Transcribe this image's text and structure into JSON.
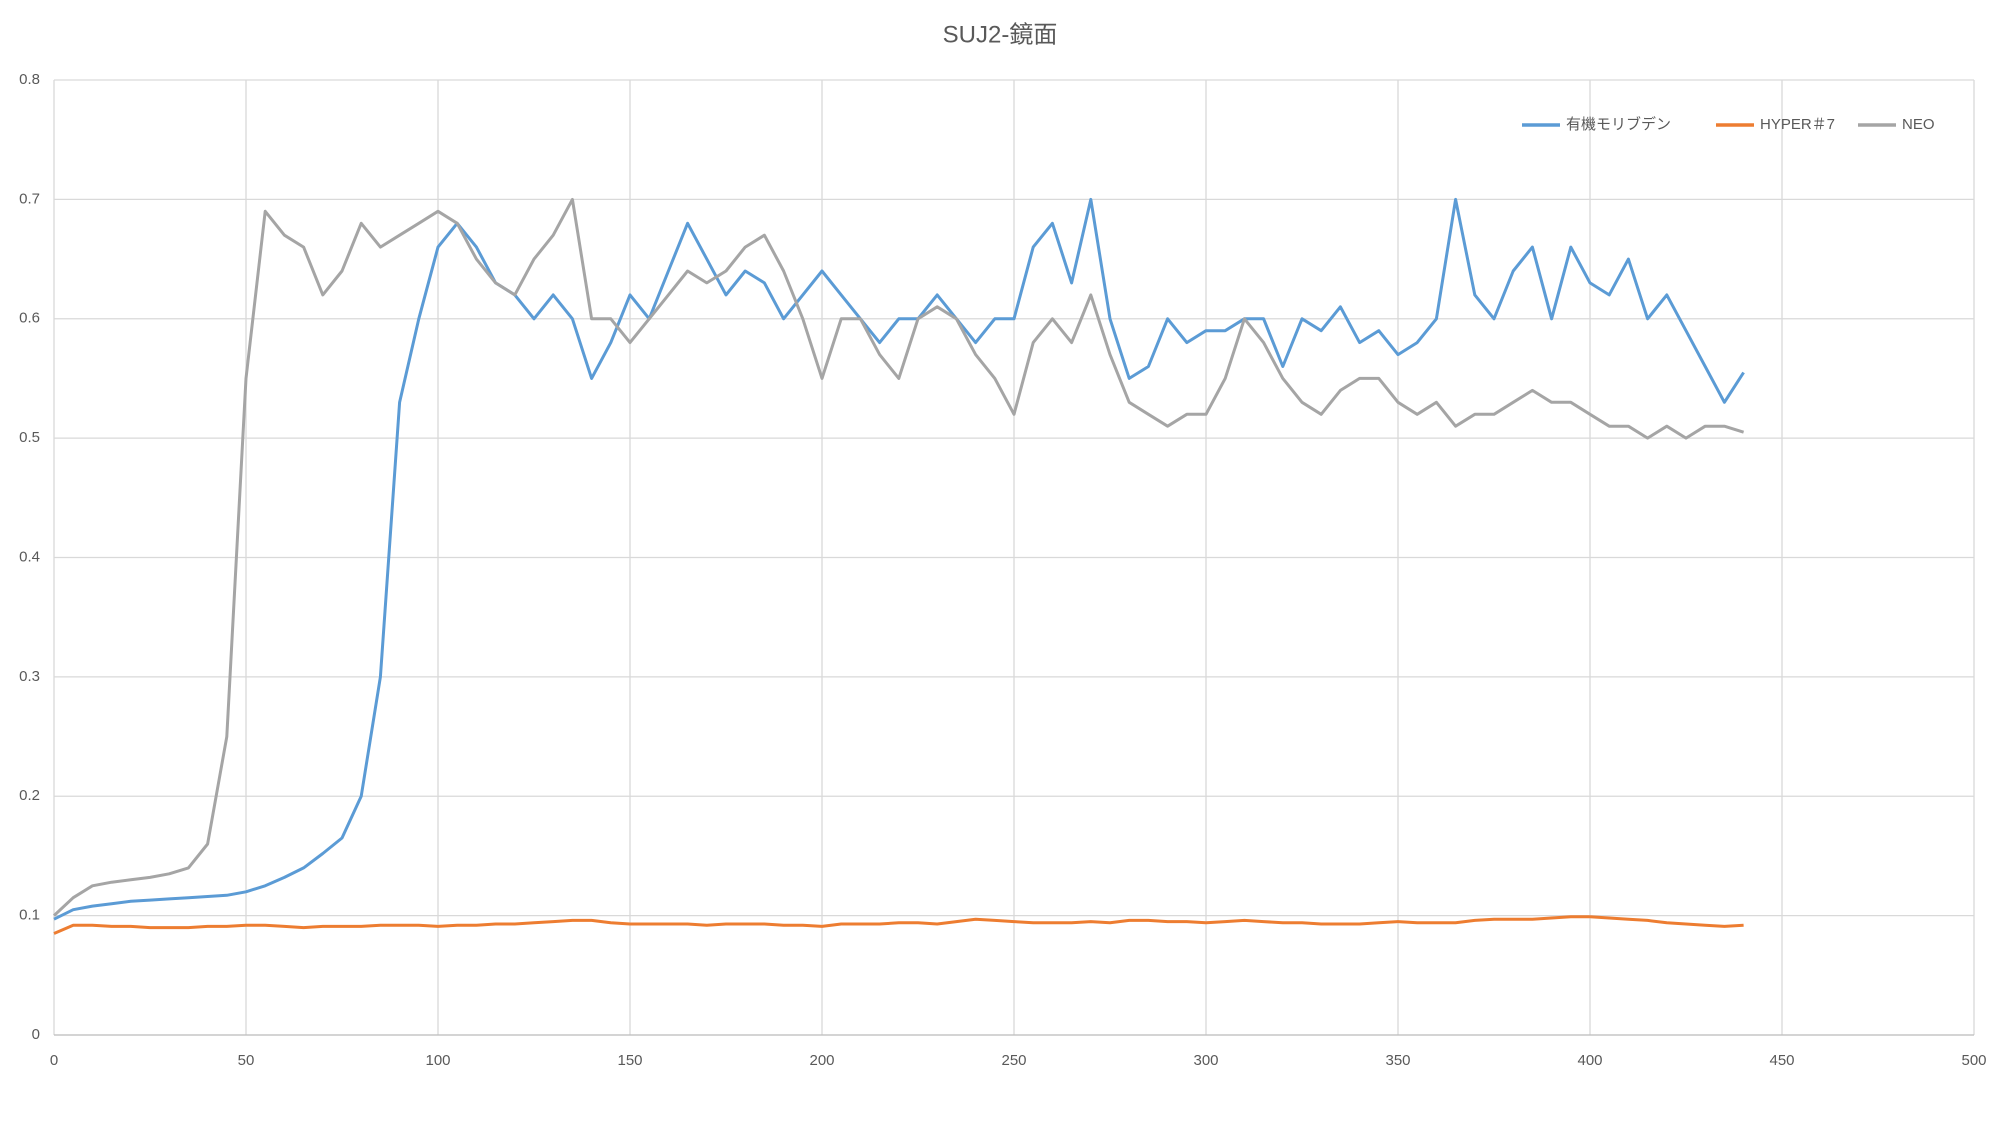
{
  "chart_data": {
    "type": "line",
    "title": "SUJ2-鏡面",
    "x": [
      0,
      5,
      10,
      15,
      20,
      25,
      30,
      35,
      40,
      45,
      50,
      55,
      60,
      65,
      70,
      75,
      80,
      85,
      90,
      95,
      100,
      105,
      110,
      115,
      120,
      125,
      130,
      135,
      140,
      145,
      150,
      155,
      160,
      165,
      170,
      175,
      180,
      185,
      190,
      195,
      200,
      205,
      210,
      215,
      220,
      225,
      230,
      235,
      240,
      245,
      250,
      255,
      260,
      265,
      270,
      275,
      280,
      285,
      290,
      295,
      300,
      305,
      310,
      315,
      320,
      325,
      330,
      335,
      340,
      345,
      350,
      355,
      360,
      365,
      370,
      375,
      380,
      385,
      390,
      395,
      400,
      405,
      410,
      415,
      420,
      425,
      430,
      435,
      440
    ],
    "series": [
      {
        "name": "有機モリブデン",
        "color": "#5b9bd5",
        "values": [
          0.097,
          0.105,
          0.108,
          0.11,
          0.112,
          0.113,
          0.114,
          0.115,
          0.116,
          0.117,
          0.12,
          0.125,
          0.132,
          0.14,
          0.152,
          0.165,
          0.2,
          0.3,
          0.53,
          0.6,
          0.66,
          0.68,
          0.66,
          0.63,
          0.62,
          0.6,
          0.62,
          0.6,
          0.55,
          0.58,
          0.62,
          0.6,
          0.64,
          0.68,
          0.65,
          0.62,
          0.64,
          0.63,
          0.6,
          0.62,
          0.64,
          0.62,
          0.6,
          0.58,
          0.6,
          0.6,
          0.62,
          0.6,
          0.58,
          0.6,
          0.6,
          0.66,
          0.68,
          0.63,
          0.7,
          0.6,
          0.55,
          0.56,
          0.6,
          0.58,
          0.59,
          0.59,
          0.6,
          0.6,
          0.56,
          0.6,
          0.59,
          0.61,
          0.58,
          0.59,
          0.57,
          0.58,
          0.6,
          0.7,
          0.62,
          0.6,
          0.64,
          0.66,
          0.6,
          0.66,
          0.63,
          0.62,
          0.65,
          0.6,
          0.62,
          0.59,
          0.56,
          0.53,
          0.555
        ]
      },
      {
        "name": "HYPER＃7",
        "color": "#ed7d31",
        "values": [
          0.085,
          0.092,
          0.092,
          0.091,
          0.091,
          0.09,
          0.09,
          0.09,
          0.091,
          0.091,
          0.092,
          0.092,
          0.091,
          0.09,
          0.091,
          0.091,
          0.091,
          0.092,
          0.092,
          0.092,
          0.091,
          0.092,
          0.092,
          0.093,
          0.093,
          0.094,
          0.095,
          0.096,
          0.096,
          0.094,
          0.093,
          0.093,
          0.093,
          0.093,
          0.092,
          0.093,
          0.093,
          0.093,
          0.092,
          0.092,
          0.091,
          0.093,
          0.093,
          0.093,
          0.094,
          0.094,
          0.093,
          0.095,
          0.097,
          0.096,
          0.095,
          0.094,
          0.094,
          0.094,
          0.095,
          0.094,
          0.096,
          0.096,
          0.095,
          0.095,
          0.094,
          0.095,
          0.096,
          0.095,
          0.094,
          0.094,
          0.093,
          0.093,
          0.093,
          0.094,
          0.095,
          0.094,
          0.094,
          0.094,
          0.096,
          0.097,
          0.097,
          0.097,
          0.098,
          0.099,
          0.099,
          0.098,
          0.097,
          0.096,
          0.094,
          0.093,
          0.092,
          0.091,
          0.092
        ]
      },
      {
        "name": "NEO",
        "color": "#a5a5a5",
        "values": [
          0.1,
          0.115,
          0.125,
          0.128,
          0.13,
          0.132,
          0.135,
          0.14,
          0.16,
          0.25,
          0.55,
          0.69,
          0.67,
          0.66,
          0.62,
          0.64,
          0.68,
          0.66,
          0.67,
          0.68,
          0.69,
          0.68,
          0.65,
          0.63,
          0.62,
          0.65,
          0.67,
          0.7,
          0.6,
          0.6,
          0.58,
          0.6,
          0.62,
          0.64,
          0.63,
          0.64,
          0.66,
          0.67,
          0.64,
          0.6,
          0.55,
          0.6,
          0.6,
          0.57,
          0.55,
          0.6,
          0.61,
          0.6,
          0.57,
          0.55,
          0.52,
          0.58,
          0.6,
          0.58,
          0.62,
          0.57,
          0.53,
          0.52,
          0.51,
          0.52,
          0.52,
          0.55,
          0.6,
          0.58,
          0.55,
          0.53,
          0.52,
          0.54,
          0.55,
          0.55,
          0.53,
          0.52,
          0.53,
          0.51,
          0.52,
          0.52,
          0.53,
          0.54,
          0.53,
          0.53,
          0.52,
          0.51,
          0.51,
          0.5,
          0.51,
          0.5,
          0.51,
          0.51,
          0.505
        ]
      }
    ],
    "xlim": [
      0,
      500
    ],
    "xticks": [
      0,
      50,
      100,
      150,
      200,
      250,
      300,
      350,
      400,
      450,
      500
    ],
    "ylim": [
      0,
      0.8
    ],
    "yticks": [
      0,
      0.1,
      0.2,
      0.3,
      0.4,
      0.5,
      0.6,
      0.7,
      0.8
    ],
    "grid": true,
    "legend": "top-right"
  }
}
